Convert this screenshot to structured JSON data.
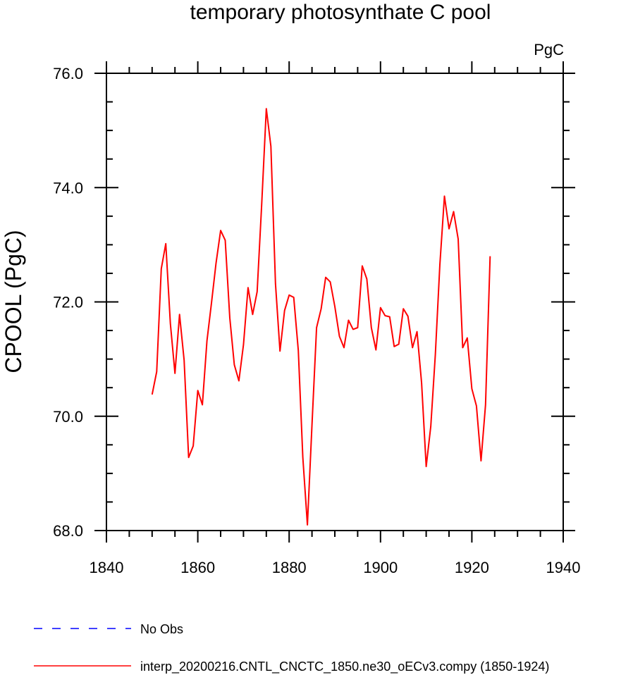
{
  "chart_data": {
    "type": "line",
    "title": "temporary photosynthate C pool",
    "units": "PgC",
    "xlabel": "",
    "ylabel": "CPOOL  (PgC)",
    "xlim": [
      1840,
      1940
    ],
    "ylim": [
      68.0,
      76.0
    ],
    "x_ticks": [
      1840,
      1860,
      1880,
      1900,
      1920,
      1940
    ],
    "x_tick_labels": [
      "1840",
      "1860",
      "1880",
      "1900",
      "1920",
      "1940"
    ],
    "y_ticks": [
      68,
      70,
      72,
      74,
      76
    ],
    "y_tick_labels": [
      "68.0",
      "70.0",
      "72.0",
      "74.0",
      "76.0"
    ],
    "grid": false,
    "legend_position": "bottom",
    "series": [
      {
        "name": "No Obs",
        "color": "#0000ff",
        "dash": "dashed",
        "x": [],
        "values": []
      },
      {
        "name": "interp_20200216.CNTL_CNCTC_1850.ne30_oECv3.compy (1850-1924)",
        "color": "#ff0000",
        "dash": "solid",
        "x": [
          1850,
          1851,
          1852,
          1853,
          1854,
          1855,
          1856,
          1857,
          1858,
          1859,
          1860,
          1861,
          1862,
          1863,
          1864,
          1865,
          1866,
          1867,
          1868,
          1869,
          1870,
          1871,
          1872,
          1873,
          1874,
          1875,
          1876,
          1877,
          1878,
          1879,
          1880,
          1881,
          1882,
          1883,
          1884,
          1885,
          1886,
          1887,
          1888,
          1889,
          1890,
          1891,
          1892,
          1893,
          1894,
          1895,
          1896,
          1897,
          1898,
          1899,
          1900,
          1901,
          1902,
          1903,
          1904,
          1905,
          1906,
          1907,
          1908,
          1909,
          1910,
          1911,
          1912,
          1913,
          1914,
          1915,
          1916,
          1917,
          1918,
          1919,
          1920,
          1921,
          1922,
          1923,
          1924
        ],
        "values": [
          70.38,
          70.78,
          72.58,
          73.02,
          71.62,
          70.75,
          71.78,
          70.98,
          69.28,
          69.48,
          70.45,
          70.2,
          71.32,
          71.98,
          72.68,
          73.25,
          73.08,
          71.72,
          70.9,
          70.62,
          71.25,
          72.25,
          71.78,
          72.18,
          73.72,
          75.38,
          74.72,
          72.32,
          71.14,
          71.85,
          72.12,
          72.08,
          71.15,
          69.28,
          68.1,
          69.85,
          71.55,
          71.88,
          72.43,
          72.35,
          71.92,
          71.4,
          71.2,
          71.68,
          71.52,
          71.55,
          72.63,
          72.4,
          71.55,
          71.16,
          71.9,
          71.76,
          71.74,
          71.22,
          71.26,
          71.88,
          71.75,
          71.2,
          71.48,
          70.58,
          69.12,
          69.82,
          71.08,
          72.65,
          73.85,
          73.28,
          73.58,
          73.1,
          71.2,
          71.37,
          70.48,
          70.18,
          69.22,
          70.2,
          72.8
        ]
      }
    ]
  }
}
